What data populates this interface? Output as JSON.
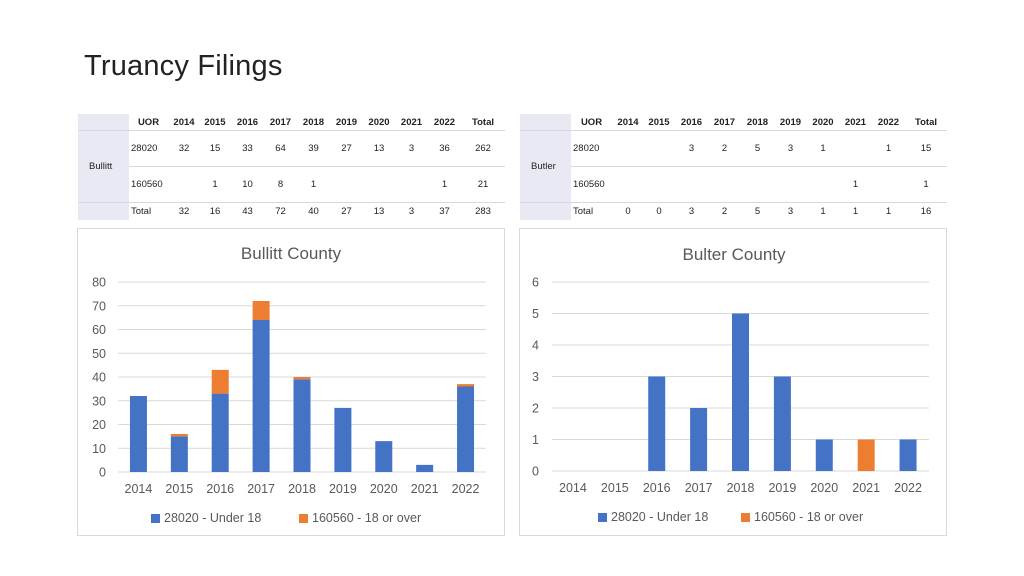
{
  "page": {
    "title": "Truancy Filings"
  },
  "tables": {
    "bullitt": {
      "county": "Bullitt",
      "headers": [
        "UOR",
        "2014",
        "2015",
        "2016",
        "2017",
        "2018",
        "2019",
        "2020",
        "2021",
        "2022",
        "Total"
      ],
      "rows": [
        [
          "28020",
          "32",
          "15",
          "33",
          "64",
          "39",
          "27",
          "13",
          "3",
          "36",
          "262"
        ],
        [
          "160560",
          "",
          "1",
          "10",
          "8",
          "1",
          "",
          "",
          "",
          "1",
          "21"
        ]
      ],
      "total_row": [
        "Total",
        "32",
        "16",
        "43",
        "72",
        "40",
        "27",
        "13",
        "3",
        "37",
        "283"
      ]
    },
    "butler": {
      "county": "Butler",
      "headers": [
        "UOR",
        "2014",
        "2015",
        "2016",
        "2017",
        "2018",
        "2019",
        "2020",
        "2021",
        "2022",
        "Total"
      ],
      "rows": [
        [
          "28020",
          "",
          "",
          "3",
          "2",
          "5",
          "3",
          "1",
          "",
          "1",
          "15"
        ],
        [
          "160560",
          "",
          "",
          "",
          "",
          "",
          "",
          "",
          "1",
          "",
          "1"
        ]
      ],
      "total_row": [
        "Total",
        "0",
        "0",
        "3",
        "2",
        "5",
        "3",
        "1",
        "1",
        "1",
        "16"
      ]
    }
  },
  "colors": {
    "series_1": "#4472c4",
    "series_2": "#ed7d31",
    "grid": "#d9d9d9",
    "axis_text": "#595959"
  },
  "chart_data": [
    {
      "type": "bar",
      "stacked": true,
      "title": "Bullitt County",
      "categories": [
        "2014",
        "2015",
        "2016",
        "2017",
        "2018",
        "2019",
        "2020",
        "2021",
        "2022"
      ],
      "series": [
        {
          "name": "28020 - Under 18",
          "values": [
            32,
            15,
            33,
            64,
            39,
            27,
            13,
            3,
            36
          ]
        },
        {
          "name": "160560 - 18 or over",
          "values": [
            0,
            1,
            10,
            8,
            1,
            0,
            0,
            0,
            1
          ]
        }
      ],
      "ylim": [
        0,
        80
      ],
      "yticks": [
        0,
        10,
        20,
        30,
        40,
        50,
        60,
        70,
        80
      ],
      "grid": true,
      "legend": "bottom"
    },
    {
      "type": "bar",
      "stacked": true,
      "title": "Bulter County",
      "categories": [
        "2014",
        "2015",
        "2016",
        "2017",
        "2018",
        "2019",
        "2020",
        "2021",
        "2022"
      ],
      "series": [
        {
          "name": "28020 - Under 18",
          "values": [
            0,
            0,
            3,
            2,
            5,
            3,
            1,
            0,
            1
          ]
        },
        {
          "name": "160560 - 18 or over",
          "values": [
            0,
            0,
            0,
            0,
            0,
            0,
            0,
            1,
            0
          ]
        }
      ],
      "ylim": [
        0,
        6
      ],
      "yticks": [
        0,
        1,
        2,
        3,
        4,
        5,
        6
      ],
      "grid": true,
      "legend": "bottom"
    }
  ]
}
